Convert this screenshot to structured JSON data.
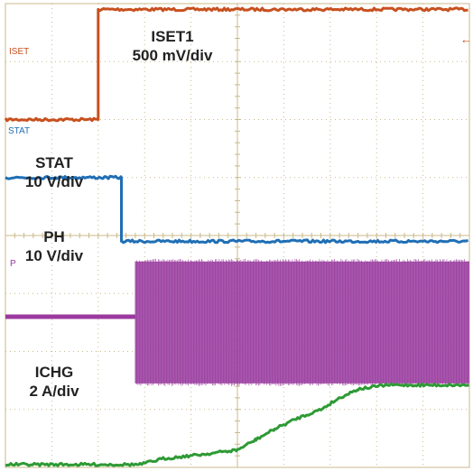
{
  "chart_data": {
    "type": "line",
    "title": "",
    "xlabel": "",
    "ylabel": "",
    "grid": true,
    "x_divisions": 10,
    "y_divisions": 8,
    "x_range": [
      0,
      10
    ],
    "colors": {
      "grid": "#c8b98a",
      "iset": "#c8501e",
      "stat": "#1f6fb5",
      "ph": "#9b3a9e",
      "ph_fill": "#a050a8",
      "ichg": "#2e9a35"
    },
    "series": [
      {
        "id": "iset",
        "channel_tag": "ISET",
        "label_line1": "ISET1",
        "label_line2": "500 mV/div",
        "x": [
          0,
          2.0,
          2.0,
          2.15,
          10
        ],
        "level_div": [
          6.0,
          6.0,
          7.9,
          7.9,
          7.9
        ]
      },
      {
        "id": "stat",
        "channel_tag": "STAT",
        "label_line1": "STAT",
        "label_line2": "10 V/div",
        "x": [
          0,
          2.5,
          2.5,
          10
        ],
        "level_div": [
          5.0,
          5.0,
          3.9,
          3.9
        ]
      },
      {
        "id": "ph",
        "channel_tag": "P",
        "label_line1": "PH",
        "label_line2": "10 V/div",
        "x": [
          0,
          2.8,
          2.8,
          10
        ],
        "level_div": [
          2.6,
          2.6,
          2.6,
          2.6
        ],
        "switching_low_div": 1.45,
        "switching_high_div": 3.55,
        "switching_start_x": 2.8
      },
      {
        "id": "ichg",
        "channel_tag": "",
        "label_line1": "ICHG",
        "label_line2": "2 A/div",
        "x": [
          0,
          2.9,
          3.4,
          4.2,
          5.0,
          5.4,
          5.8,
          6.3,
          6.8,
          7.2,
          7.6,
          8.2,
          10
        ],
        "level_div": [
          0.05,
          0.05,
          0.15,
          0.22,
          0.3,
          0.48,
          0.66,
          0.85,
          1.0,
          1.2,
          1.35,
          1.42,
          1.42
        ]
      }
    ]
  }
}
